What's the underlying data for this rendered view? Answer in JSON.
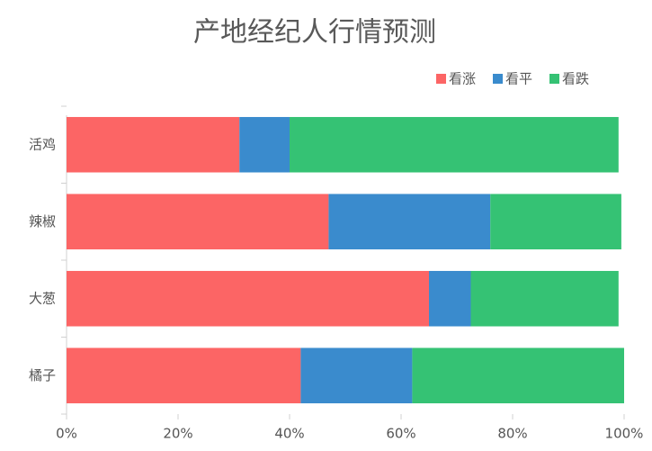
{
  "chart_data": {
    "type": "stacked-barh",
    "title": "产地经纪人行情预测",
    "categories": [
      "活鸡",
      "辣椒",
      "大葱",
      "橘子"
    ],
    "series": [
      {
        "name": "看涨",
        "color": "#fc6565",
        "values": [
          31,
          47,
          65,
          42
        ]
      },
      {
        "name": "看平",
        "color": "#3a8bcd",
        "values": [
          9,
          29,
          7.5,
          20
        ]
      },
      {
        "name": "看跌",
        "color": "#35c274",
        "values": [
          59,
          23.5,
          26.5,
          38
        ]
      }
    ],
    "xlim": [
      0,
      100
    ],
    "xticks": [
      {
        "value": 0,
        "label": "0%"
      },
      {
        "value": 20,
        "label": "20%"
      },
      {
        "value": 40,
        "label": "40%"
      },
      {
        "value": 60,
        "label": "60%"
      },
      {
        "value": 80,
        "label": "80%"
      },
      {
        "value": 100,
        "label": "100%"
      }
    ],
    "legend": "top-right"
  }
}
